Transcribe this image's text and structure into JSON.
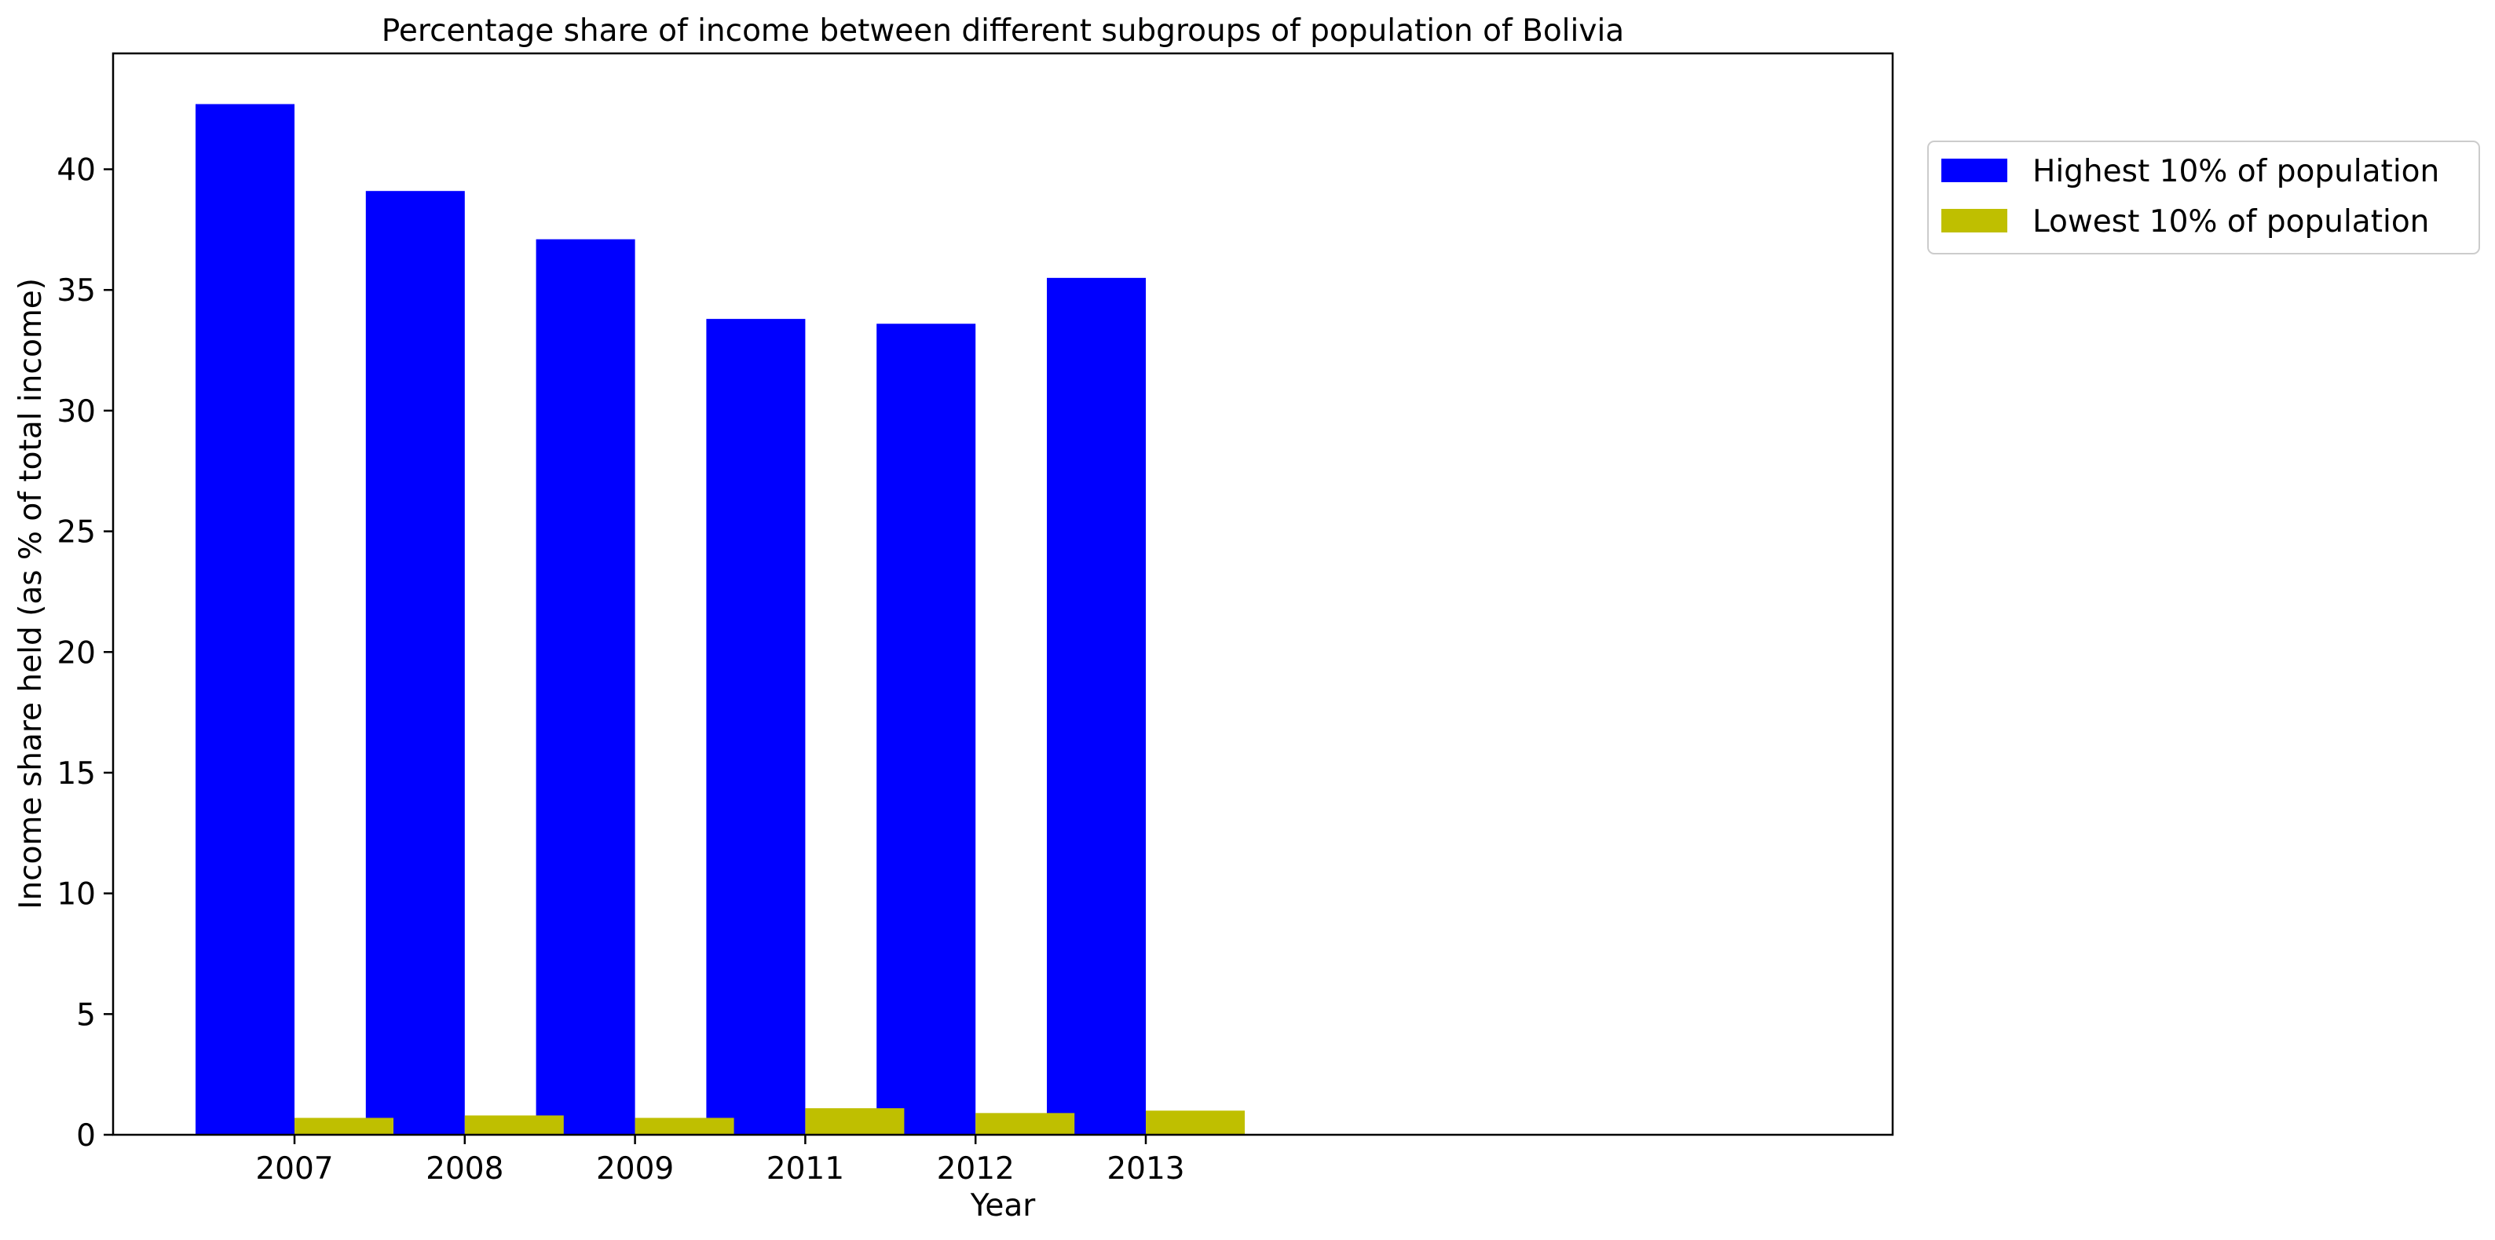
{
  "chart_data": {
    "type": "bar",
    "title": "Percentage share of income between different subgroups of population of Bolivia",
    "xlabel": "Year",
    "ylabel": "Income share held (as % of total income)",
    "categories": [
      "2007",
      "2008",
      "2009",
      "2011",
      "2012",
      "2013"
    ],
    "series": [
      {
        "name": "Highest 10% of population",
        "color": "#0000ff",
        "values": [
          42.7,
          39.1,
          37.1,
          33.8,
          33.6,
          35.5
        ]
      },
      {
        "name": "Lowest 10% of population",
        "color": "#bfbf00",
        "values": [
          0.7,
          0.8,
          0.7,
          1.1,
          0.9,
          1.0
        ]
      }
    ],
    "ylim": [
      0,
      44.8
    ],
    "yticks": [
      0,
      5,
      10,
      15,
      20,
      25,
      30,
      35,
      40
    ],
    "grid": false,
    "legend_position": "outside-top-right"
  }
}
